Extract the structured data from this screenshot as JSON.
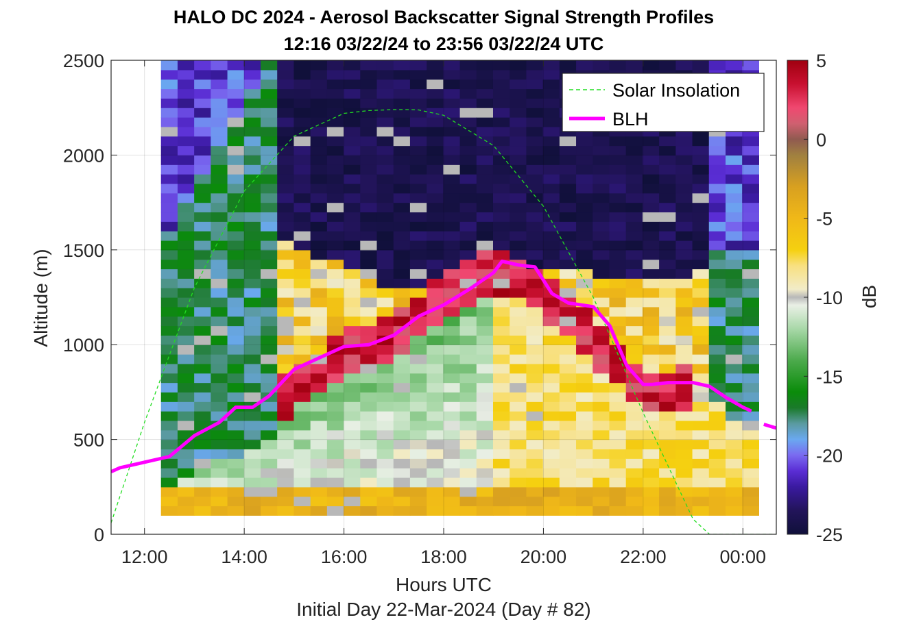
{
  "chart_data": {
    "type": "heatmap",
    "title_line1": "HALO DC 2024 - Aerosol Backscatter Signal Strength Profiles",
    "title_line2": "12:16 03/22/24 to 23:56 03/22/24  UTC",
    "xlabel": "Hours UTC",
    "xlabel2": "Initial Day 22-Mar-2024 (Day # 82)",
    "ylabel": "Altitude (m)",
    "colorbar_label": "dB",
    "xlim": [
      11.33,
      24.67
    ],
    "ylim": [
      0,
      2500
    ],
    "xticks": [
      12,
      14,
      16,
      18,
      20,
      22,
      24
    ],
    "xtick_labels": [
      "12:00",
      "14:00",
      "16:00",
      "18:00",
      "20:00",
      "22:00",
      "00:00"
    ],
    "yticks": [
      0,
      500,
      1000,
      1500,
      2000,
      2500
    ],
    "ytick_labels": [
      "0",
      "500",
      "1000",
      "1500",
      "2000",
      "2500"
    ],
    "colorbar_ticks": [
      5,
      0,
      -5,
      -10,
      -15,
      -20,
      -25
    ],
    "colorbar_tick_labels": [
      "5",
      "0",
      "-5",
      "-10",
      "-15",
      "-20",
      "-25"
    ],
    "clim": [
      -25,
      5
    ],
    "grid": true,
    "legend_position": "top-right",
    "heatmap": {
      "x_start": 12.33,
      "x_step": 0.333,
      "n_cols": 36,
      "y_start": 100,
      "y_step": 50,
      "n_rows": 48,
      "profile_controls": {
        "times": [
          12.3,
          14.5,
          14.7,
          16.0,
          17.0,
          18.0,
          19.0,
          19.5,
          20.5,
          22.0,
          23.0,
          23.3,
          24.0
        ],
        "blh": [
          380,
          650,
          750,
          980,
          1080,
          1300,
          1440,
          1380,
          1210,
          780,
          800,
          900,
          700
        ],
        "top_layer": [
          1500,
          2500,
          1550,
          1420,
          1280,
          1290,
          1420,
          1400,
          1380,
          1360,
          1330,
          1500,
          1500
        ]
      }
    },
    "series": [
      {
        "name": "Solar Insolation",
        "style": "dashed",
        "color": "#22dd22",
        "x": [
          11.33,
          12.0,
          13.0,
          14.0,
          15.0,
          16.0,
          16.5,
          17.0,
          17.25,
          17.5,
          18.0,
          19.0,
          20.0,
          21.0,
          22.0,
          23.0,
          23.33,
          23.5,
          24.67
        ],
        "y": [
          60,
          590,
          1300,
          1810,
          2100,
          2220,
          2235,
          2240,
          2240,
          2238,
          2210,
          2050,
          1730,
          1250,
          640,
          80,
          0,
          0,
          0
        ]
      },
      {
        "name": "BLH",
        "style": "solid",
        "color": "#ff00ff",
        "x": [
          11.33,
          11.5,
          12.0,
          12.5,
          13.0,
          13.5,
          13.83,
          14.17,
          14.5,
          15.0,
          15.5,
          16.0,
          16.5,
          17.0,
          17.5,
          18.0,
          18.5,
          19.0,
          19.17,
          19.5,
          19.83,
          20.17,
          20.5,
          21.0,
          21.33,
          21.67,
          22.0,
          22.17,
          22.5,
          23.0,
          23.33,
          23.67,
          24.0,
          24.17
        ],
        "y": [
          330,
          350,
          380,
          410,
          520,
          590,
          670,
          670,
          730,
          870,
          930,
          990,
          1000,
          1050,
          1150,
          1210,
          1290,
          1380,
          1440,
          1420,
          1410,
          1270,
          1220,
          1200,
          1100,
          890,
          790,
          790,
          800,
          800,
          780,
          720,
          670,
          650
        ],
        "extra_segment": {
          "x": [
            24.42,
            24.67
          ],
          "y": [
            580,
            560
          ]
        }
      }
    ],
    "colormap": [
      {
        "v": -25,
        "c": "#10103a"
      },
      {
        "v": -23.5,
        "c": "#22145a"
      },
      {
        "v": -22,
        "c": "#3a1aa0"
      },
      {
        "v": -21,
        "c": "#5a2dd4"
      },
      {
        "v": -20,
        "c": "#7a6af0"
      },
      {
        "v": -19,
        "c": "#6aa8f0"
      },
      {
        "v": -18,
        "c": "#5a9aa0"
      },
      {
        "v": -17,
        "c": "#1a7a2a"
      },
      {
        "v": -16,
        "c": "#0a8c0a"
      },
      {
        "v": -14,
        "c": "#4caa4c"
      },
      {
        "v": -12,
        "c": "#a8d8a8"
      },
      {
        "v": -10.5,
        "c": "#eaf0e6"
      },
      {
        "v": -10,
        "c": "#b8b8b8"
      },
      {
        "v": -9.5,
        "c": "#f2ecc8"
      },
      {
        "v": -8,
        "c": "#f8e080"
      },
      {
        "v": -7,
        "c": "#f5d010"
      },
      {
        "v": -5,
        "c": "#f0b818"
      },
      {
        "v": -3,
        "c": "#d8a020"
      },
      {
        "v": -1,
        "c": "#a08040"
      },
      {
        "v": 0,
        "c": "#905a50"
      },
      {
        "v": 1,
        "c": "#d06070"
      },
      {
        "v": 2,
        "c": "#f04870"
      },
      {
        "v": 3.5,
        "c": "#c81030"
      },
      {
        "v": 5,
        "c": "#a00010"
      }
    ]
  }
}
